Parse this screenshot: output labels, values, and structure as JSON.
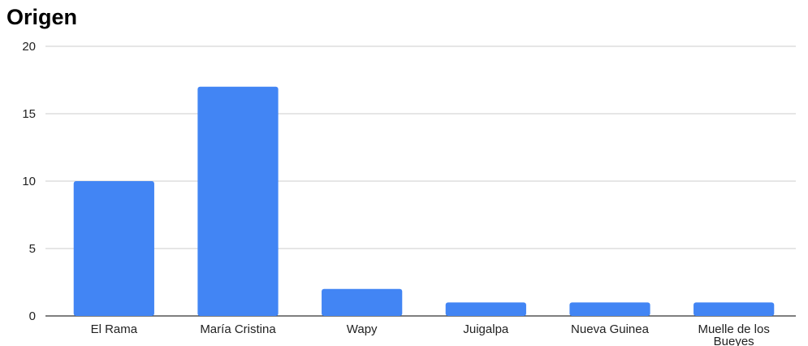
{
  "chart_data": {
    "type": "bar",
    "title": "Origen",
    "xlabel": "",
    "ylabel": "",
    "categories": [
      "El Rama",
      "María Cristina",
      "Wapy",
      "Juigalpa",
      "Nueva Guinea",
      "Muelle de los Bueyes"
    ],
    "values": [
      10,
      17,
      2,
      1,
      1,
      1
    ],
    "ylim": [
      0,
      20
    ],
    "yticks": [
      "0",
      "5",
      "10",
      "15",
      "20"
    ],
    "grid": true,
    "legend": "none",
    "colors": {
      "bar": "#4285f4",
      "grid": "#cccccc",
      "axis": "#333333",
      "text": "#222222"
    }
  }
}
